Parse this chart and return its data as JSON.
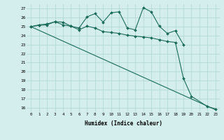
{
  "xlabel": "Humidex (Indice chaleur)",
  "x": [
    0,
    1,
    2,
    3,
    4,
    5,
    6,
    7,
    8,
    9,
    10,
    11,
    12,
    13,
    14,
    15,
    16,
    17,
    18,
    19,
    20,
    21,
    22,
    23
  ],
  "line1_x": [
    0,
    1,
    2,
    3,
    4,
    5,
    6,
    7,
    8,
    9,
    10,
    11,
    12,
    13,
    14,
    15,
    16,
    17,
    18,
    19
  ],
  "line1_y": [
    25.0,
    25.15,
    25.2,
    25.55,
    25.5,
    25.05,
    24.85,
    26.1,
    26.45,
    25.5,
    26.55,
    26.65,
    24.85,
    24.65,
    27.1,
    26.65,
    25.05,
    24.25,
    24.55,
    23.0
  ],
  "line2_x": [
    0,
    1,
    2,
    3,
    4,
    5,
    6,
    7,
    8,
    9,
    10,
    11,
    12,
    13,
    14,
    15,
    16,
    17,
    18,
    19,
    20,
    22,
    23
  ],
  "line2_y": [
    25.0,
    25.2,
    25.3,
    25.55,
    25.2,
    25.05,
    24.65,
    25.05,
    24.85,
    24.45,
    24.35,
    24.25,
    24.05,
    23.95,
    23.85,
    23.75,
    23.55,
    23.35,
    23.25,
    19.25,
    17.25,
    16.1,
    15.85
  ],
  "line3_x": [
    0,
    23
  ],
  "line3_y": [
    25.0,
    15.75
  ],
  "ylim_min": 15.5,
  "ylim_max": 27.5,
  "yticks": [
    16,
    17,
    18,
    19,
    20,
    21,
    22,
    23,
    24,
    25,
    26,
    27
  ],
  "xticks": [
    0,
    1,
    2,
    3,
    4,
    5,
    6,
    7,
    8,
    9,
    10,
    11,
    12,
    13,
    14,
    15,
    16,
    17,
    18,
    19,
    20,
    21,
    22,
    23
  ],
  "bg_color": "#d4eeee",
  "line_color": "#1a6b5a",
  "grid_color": "#aed4d4"
}
